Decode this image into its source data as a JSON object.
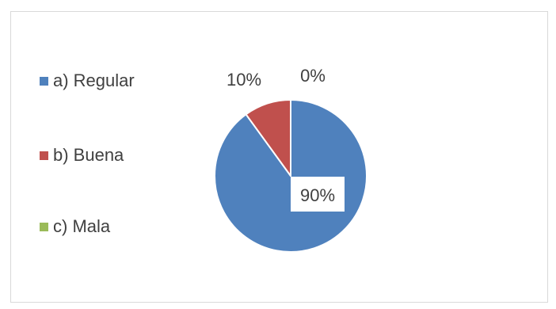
{
  "chart_data": {
    "type": "pie",
    "categories": [
      "a) Regular",
      "b) Buena",
      "c) Mala"
    ],
    "values": [
      90,
      10,
      0
    ],
    "data_labels": [
      "90%",
      "10%",
      "0%"
    ],
    "colors": [
      "#4f81bd",
      "#c0504d",
      "#9bbb59"
    ],
    "legend_position": "left",
    "start_angle_deg": 0,
    "direction": "clockwise"
  }
}
